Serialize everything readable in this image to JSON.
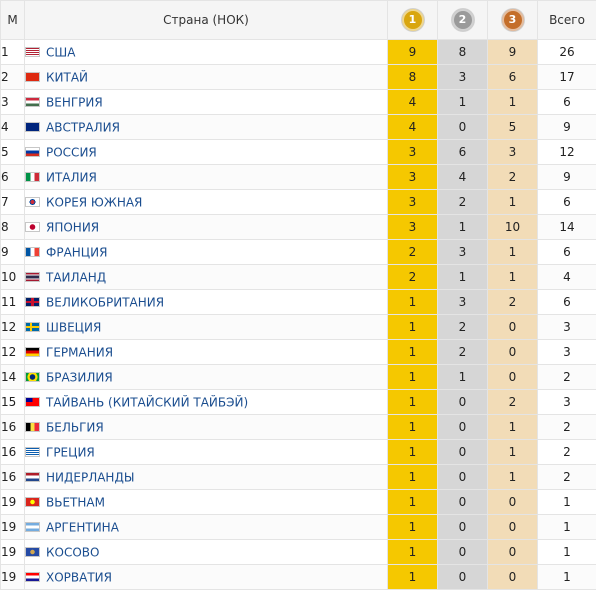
{
  "header": {
    "rank": "М",
    "country": "Страна (НОК)",
    "gold_icon_label": "1",
    "silver_icon_label": "2",
    "bronze_icon_label": "3",
    "total": "Всего"
  },
  "colors": {
    "gold": "#f5c800",
    "silver": "#d6d6d6",
    "bronze": "#f2dcb7",
    "link": "#1a4d8f"
  },
  "rows": [
    {
      "rank": "1",
      "flag": "usa-flag-icon",
      "country": "США",
      "gold": "9",
      "silver": "8",
      "bronze": "9",
      "total": "26"
    },
    {
      "rank": "2",
      "flag": "china-flag-icon",
      "country": "КИТАЙ",
      "gold": "8",
      "silver": "3",
      "bronze": "6",
      "total": "17"
    },
    {
      "rank": "3",
      "flag": "hungary-flag-icon",
      "country": "ВЕНГРИЯ",
      "gold": "4",
      "silver": "1",
      "bronze": "1",
      "total": "6"
    },
    {
      "rank": "4",
      "flag": "australia-flag-icon",
      "country": "АВСТРАЛИЯ",
      "gold": "4",
      "silver": "0",
      "bronze": "5",
      "total": "9"
    },
    {
      "rank": "5",
      "flag": "russia-flag-icon",
      "country": "РОССИЯ",
      "gold": "3",
      "silver": "6",
      "bronze": "3",
      "total": "12"
    },
    {
      "rank": "6",
      "flag": "italy-flag-icon",
      "country": "ИТАЛИЯ",
      "gold": "3",
      "silver": "4",
      "bronze": "2",
      "total": "9"
    },
    {
      "rank": "7",
      "flag": "south-korea-flag-icon",
      "country": "КОРЕЯ ЮЖНАЯ",
      "gold": "3",
      "silver": "2",
      "bronze": "1",
      "total": "6"
    },
    {
      "rank": "8",
      "flag": "japan-flag-icon",
      "country": "ЯПОНИЯ",
      "gold": "3",
      "silver": "1",
      "bronze": "10",
      "total": "14"
    },
    {
      "rank": "9",
      "flag": "france-flag-icon",
      "country": "ФРАНЦИЯ",
      "gold": "2",
      "silver": "3",
      "bronze": "1",
      "total": "6"
    },
    {
      "rank": "10",
      "flag": "thailand-flag-icon",
      "country": "ТАИЛАНД",
      "gold": "2",
      "silver": "1",
      "bronze": "1",
      "total": "4"
    },
    {
      "rank": "11",
      "flag": "uk-flag-icon",
      "country": "ВЕЛИКОБРИТАНИЯ",
      "gold": "1",
      "silver": "3",
      "bronze": "2",
      "total": "6"
    },
    {
      "rank": "12",
      "flag": "sweden-flag-icon",
      "country": "ШВЕЦИЯ",
      "gold": "1",
      "silver": "2",
      "bronze": "0",
      "total": "3"
    },
    {
      "rank": "12",
      "flag": "germany-flag-icon",
      "country": "ГЕРМАНИЯ",
      "gold": "1",
      "silver": "2",
      "bronze": "0",
      "total": "3"
    },
    {
      "rank": "14",
      "flag": "brazil-flag-icon",
      "country": "БРАЗИЛИЯ",
      "gold": "1",
      "silver": "1",
      "bronze": "0",
      "total": "2"
    },
    {
      "rank": "15",
      "flag": "taiwan-flag-icon",
      "country": "ТАЙВАНЬ (КИТАЙСКИЙ ТАЙБЭЙ)",
      "gold": "1",
      "silver": "0",
      "bronze": "2",
      "total": "3"
    },
    {
      "rank": "16",
      "flag": "belgium-flag-icon",
      "country": "БЕЛЬГИЯ",
      "gold": "1",
      "silver": "0",
      "bronze": "1",
      "total": "2"
    },
    {
      "rank": "16",
      "flag": "greece-flag-icon",
      "country": "ГРЕЦИЯ",
      "gold": "1",
      "silver": "0",
      "bronze": "1",
      "total": "2"
    },
    {
      "rank": "16",
      "flag": "netherlands-flag-icon",
      "country": "НИДЕРЛАНДЫ",
      "gold": "1",
      "silver": "0",
      "bronze": "1",
      "total": "2"
    },
    {
      "rank": "19",
      "flag": "vietnam-flag-icon",
      "country": "ВЬЕТНАМ",
      "gold": "1",
      "silver": "0",
      "bronze": "0",
      "total": "1"
    },
    {
      "rank": "19",
      "flag": "argentina-flag-icon",
      "country": "АРГЕНТИНА",
      "gold": "1",
      "silver": "0",
      "bronze": "0",
      "total": "1"
    },
    {
      "rank": "19",
      "flag": "kosovo-flag-icon",
      "country": "КОСОВО",
      "gold": "1",
      "silver": "0",
      "bronze": "0",
      "total": "1"
    },
    {
      "rank": "19",
      "flag": "croatia-flag-icon",
      "country": "ХОРВАТИЯ",
      "gold": "1",
      "silver": "0",
      "bronze": "0",
      "total": "1"
    }
  ]
}
